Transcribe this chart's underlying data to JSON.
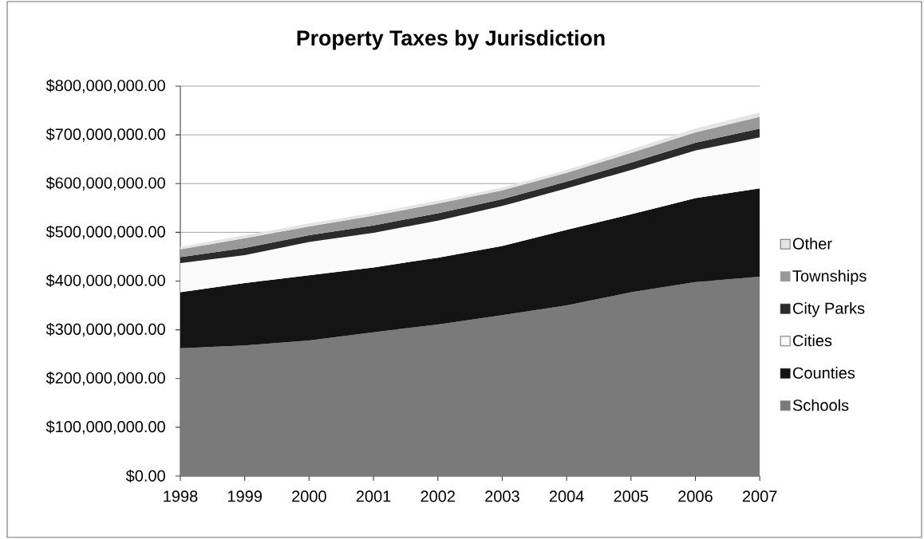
{
  "chart_data": {
    "type": "area",
    "title": "Property Taxes by Jurisdiction",
    "stacked": true,
    "x": [
      1998,
      1999,
      2000,
      2001,
      2002,
      2003,
      2004,
      2005,
      2006,
      2007
    ],
    "series": [
      {
        "name": "Schools",
        "color": "#7a7a7a",
        "values": [
          262000000,
          268000000,
          278000000,
          295000000,
          311000000,
          330000000,
          350000000,
          377000000,
          398000000,
          409000000
        ]
      },
      {
        "name": "Counties",
        "color": "#141414",
        "values": [
          115000000,
          128000000,
          134000000,
          133000000,
          137000000,
          142000000,
          155000000,
          160000000,
          172000000,
          181000000
        ]
      },
      {
        "name": "Cities",
        "color": "#fafafa",
        "values": [
          60000000,
          57000000,
          68000000,
          71000000,
          76000000,
          82000000,
          85000000,
          91000000,
          98000000,
          105000000
        ]
      },
      {
        "name": "City Parks",
        "color": "#2b2b2b",
        "values": [
          12000000,
          15000000,
          14000000,
          15000000,
          15000000,
          14000000,
          14000000,
          15000000,
          16000000,
          18000000
        ]
      },
      {
        "name": "Townships",
        "color": "#999999",
        "values": [
          16000000,
          20000000,
          18000000,
          20000000,
          20000000,
          18000000,
          18000000,
          20000000,
          21000000,
          24000000
        ]
      },
      {
        "name": "Other",
        "color": "#e4e4e4",
        "values": [
          5000000,
          6000000,
          6000000,
          6000000,
          6000000,
          6000000,
          6000000,
          7000000,
          8000000,
          9000000
        ]
      }
    ],
    "xlim": [
      1998,
      2007
    ],
    "xticks": [
      1998,
      1999,
      2000,
      2001,
      2002,
      2003,
      2004,
      2005,
      2006,
      2007
    ],
    "ylim": [
      0,
      800000000
    ],
    "yticks": [
      {
        "value": 0,
        "label": "$0.00"
      },
      {
        "value": 100000000,
        "label": "$100,000,000.00"
      },
      {
        "value": 200000000,
        "label": "$200,000,000.00"
      },
      {
        "value": 300000000,
        "label": "$300,000,000.00"
      },
      {
        "value": 400000000,
        "label": "$400,000,000.00"
      },
      {
        "value": 500000000,
        "label": "$500,000,000.00"
      },
      {
        "value": 600000000,
        "label": "$600,000,000.00"
      },
      {
        "value": 700000000,
        "label": "$700,000,000.00"
      },
      {
        "value": 800000000,
        "label": "$800,000,000.00"
      }
    ],
    "grid": "y",
    "legend": "right"
  }
}
